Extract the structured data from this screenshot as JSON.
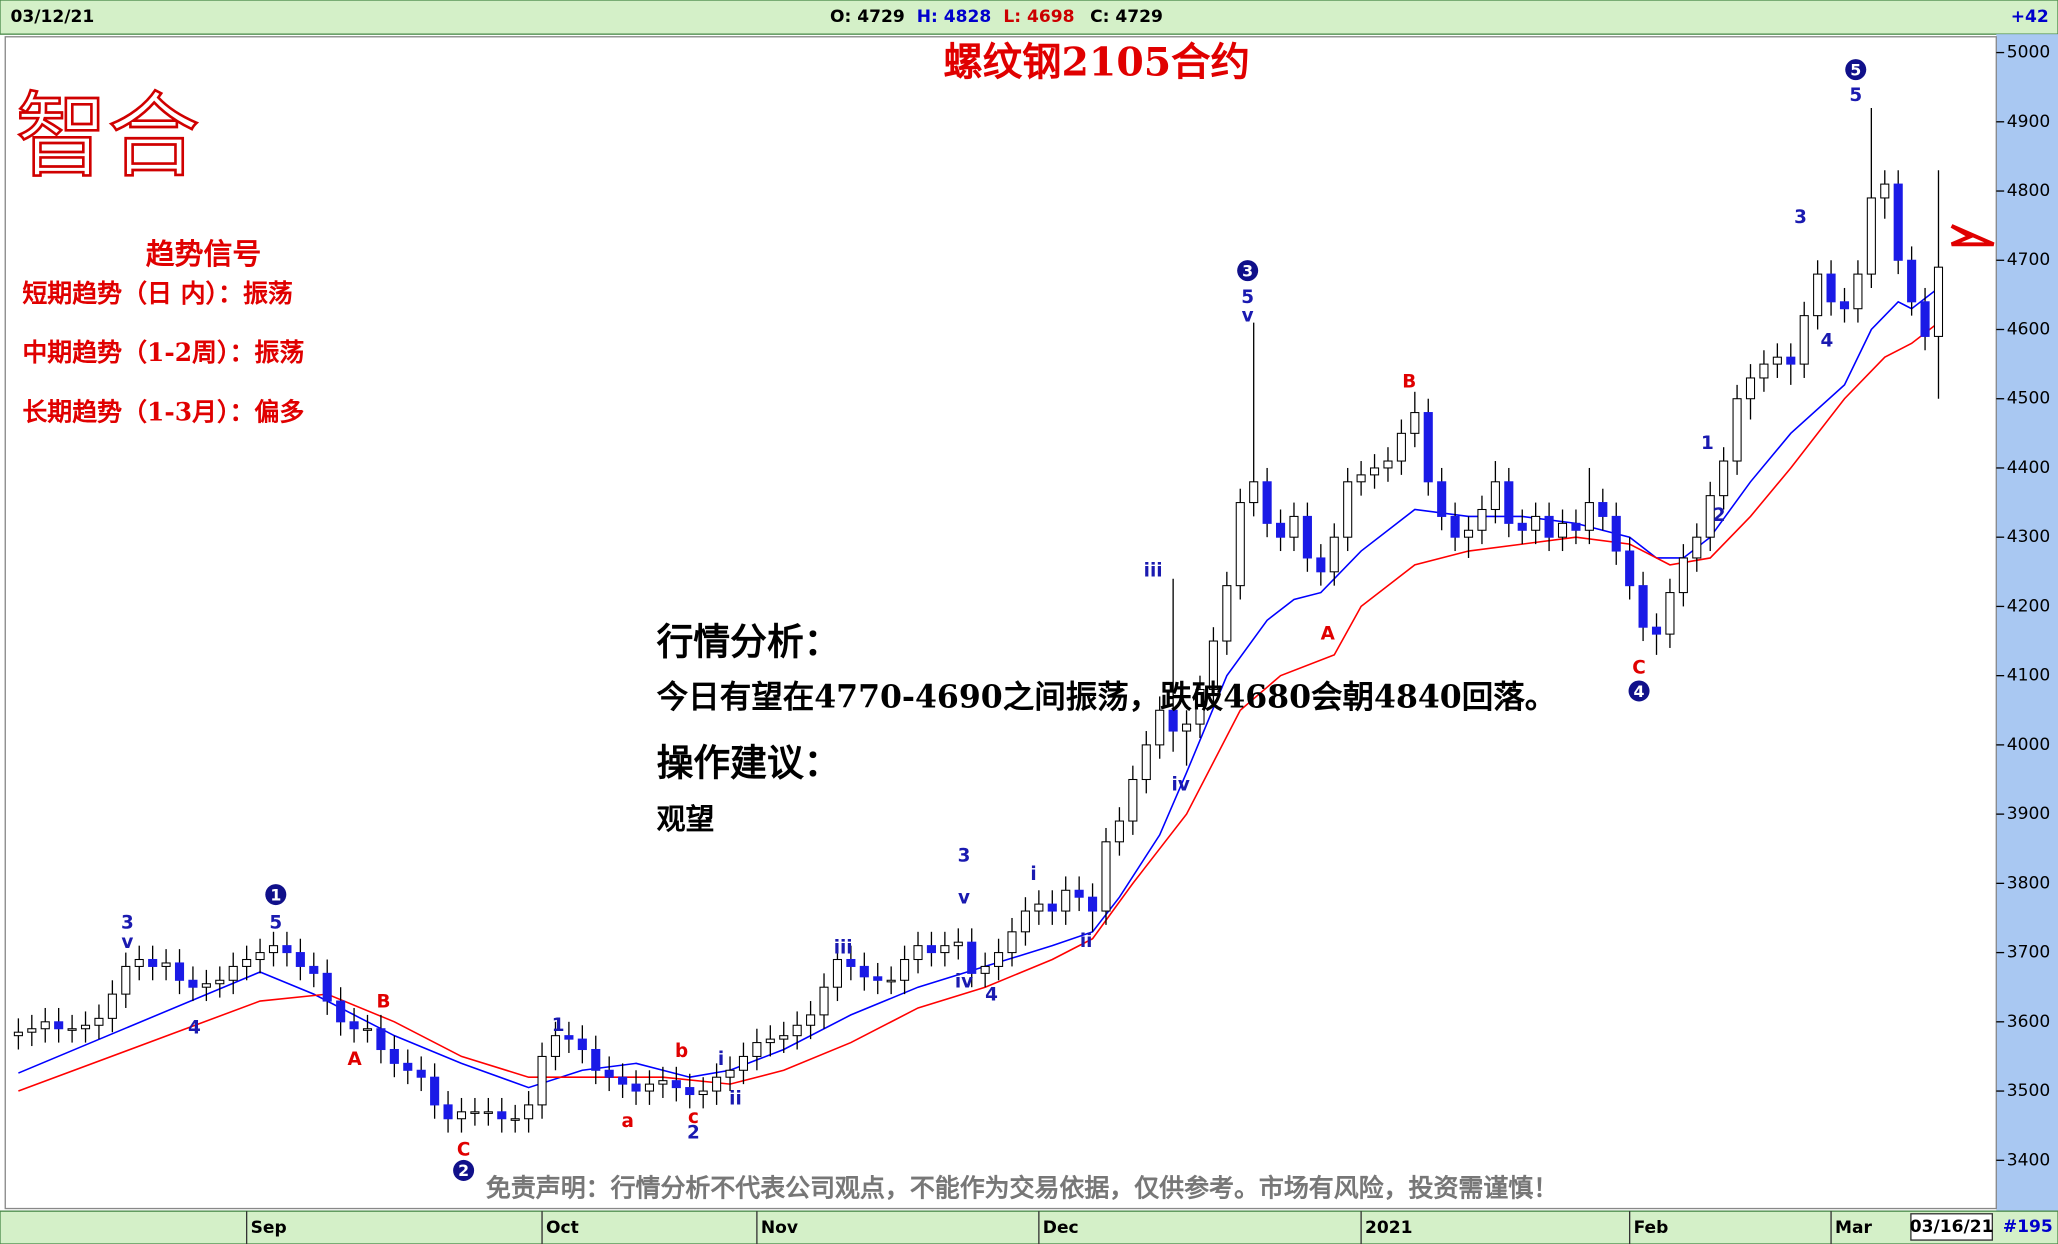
{
  "header": {
    "date": "03/12/21",
    "open": "O: 4729",
    "high": "H: 4828",
    "low": "L: 4698",
    "close": "C: 4729",
    "change": "+42"
  },
  "logo": "智合",
  "signals": {
    "title": "趋势信号",
    "lines": [
      "短期趋势（日 内）：振荡",
      "中期趋势（1-2周）：振荡",
      "长期趋势（1-3月）：偏多"
    ]
  },
  "analysis": {
    "title": "行情分析：",
    "text": "今日有望在4770-4690之间振荡，跌破4680会朝4840回落。",
    "advice_title": "操作建议：",
    "advice": "观望"
  },
  "disclaimer": "免责声明：行情分析不代表公司观点，不能作为交易依据，仅供参考。市场有风险，投资需谨慎！",
  "footer": {
    "date": "03/16/21",
    "count": "#195"
  },
  "chart_data": {
    "type": "candlestick",
    "title": "螺纹钢2105合约",
    "open": [
      3580,
      3585,
      3590,
      3600,
      3590,
      3590,
      3595,
      3605,
      3640,
      3680,
      3690,
      3680,
      3685,
      3660,
      3650,
      3655,
      3660,
      3680,
      3690,
      3700,
      3710,
      3700,
      3680,
      3670,
      3630,
      3600,
      3590,
      3590,
      3560,
      3540,
      3530,
      3520,
      3480,
      3460,
      3470,
      3470,
      3470,
      3460,
      3460,
      3480,
      3550,
      3580,
      3575,
      3560,
      3530,
      3520,
      3510,
      3500,
      3510,
      3515,
      3505,
      3495,
      3500,
      3520,
      3530,
      3550,
      3570,
      3575,
      3580,
      3595,
      3610,
      3650,
      3690,
      3680,
      3665,
      3660,
      3660,
      3690,
      3710,
      3700,
      3710,
      3715,
      3670,
      3680,
      3700,
      3730,
      3760,
      3770,
      3760,
      3790,
      3780,
      3760,
      3860,
      3890,
      3950,
      4000,
      4050,
      4020,
      4030,
      4080,
      4150,
      4230,
      4350,
      4380,
      4320,
      4300,
      4330,
      4270,
      4250,
      4300,
      4380,
      4390,
      4400,
      4410,
      4450,
      4480,
      4380,
      4330,
      4300,
      4310,
      4340,
      4380,
      4320,
      4310,
      4330,
      4300,
      4320,
      4310,
      4350,
      4330,
      4280,
      4230,
      4170,
      4160,
      4220,
      4270,
      4300,
      4360,
      4410,
      4500,
      4530,
      4550,
      4560,
      4550,
      4620,
      4680,
      4640,
      4630,
      4680,
      4790,
      4810,
      4700,
      4640,
      4590
    ],
    "high": [
      3605,
      3610,
      3620,
      3620,
      3610,
      3615,
      3625,
      3660,
      3700,
      3710,
      3710,
      3705,
      3705,
      3680,
      3675,
      3680,
      3700,
      3710,
      3720,
      3730,
      3730,
      3720,
      3700,
      3690,
      3650,
      3620,
      3610,
      3610,
      3580,
      3560,
      3550,
      3540,
      3500,
      3490,
      3490,
      3490,
      3490,
      3480,
      3500,
      3570,
      3600,
      3600,
      3595,
      3580,
      3550,
      3540,
      3530,
      3530,
      3535,
      3535,
      3525,
      3520,
      3540,
      3550,
      3570,
      3590,
      3595,
      3600,
      3615,
      3630,
      3670,
      3710,
      3710,
      3700,
      3685,
      3680,
      3710,
      3730,
      3730,
      3730,
      3735,
      3735,
      3700,
      3720,
      3750,
      3780,
      3790,
      3790,
      3810,
      3810,
      3800,
      3880,
      3910,
      3970,
      4020,
      4070,
      4240,
      4050,
      4100,
      4170,
      4250,
      4370,
      4610,
      4400,
      4340,
      4350,
      4350,
      4290,
      4320,
      4400,
      4410,
      4420,
      4430,
      4470,
      4510,
      4500,
      4400,
      4350,
      4330,
      4360,
      4410,
      4400,
      4340,
      4350,
      4350,
      4340,
      4340,
      4400,
      4370,
      4350,
      4300,
      4250,
      4190,
      4240,
      4290,
      4320,
      4380,
      4430,
      4520,
      4550,
      4570,
      4580,
      4580,
      4640,
      4700,
      4700,
      4660,
      4700,
      4920,
      4830,
      4830,
      4720,
      4660,
      4830
    ],
    "low": [
      3560,
      3565,
      3570,
      3570,
      3570,
      3570,
      3575,
      3585,
      3620,
      3660,
      3660,
      3660,
      3640,
      3630,
      3630,
      3635,
      3640,
      3660,
      3670,
      3680,
      3680,
      3660,
      3650,
      3610,
      3580,
      3570,
      3570,
      3540,
      3520,
      3510,
      3500,
      3460,
      3440,
      3440,
      3450,
      3450,
      3440,
      3440,
      3440,
      3460,
      3530,
      3555,
      3540,
      3510,
      3500,
      3490,
      3480,
      3480,
      3490,
      3485,
      3475,
      3475,
      3480,
      3500,
      3510,
      3530,
      3550,
      3555,
      3560,
      3575,
      3590,
      3630,
      3660,
      3645,
      3640,
      3640,
      3640,
      3670,
      3680,
      3680,
      3690,
      3650,
      3650,
      3660,
      3680,
      3710,
      3740,
      3740,
      3740,
      3760,
      3730,
      3740,
      3840,
      3870,
      3930,
      3980,
      3990,
      3970,
      4010,
      4060,
      4130,
      4210,
      4330,
      4300,
      4280,
      4280,
      4250,
      4230,
      4230,
      4280,
      4360,
      4370,
      4380,
      4390,
      4430,
      4360,
      4310,
      4280,
      4270,
      4290,
      4320,
      4300,
      4290,
      4290,
      4280,
      4280,
      4290,
      4290,
      4310,
      4260,
      4210,
      4150,
      4130,
      4140,
      4200,
      4250,
      4280,
      4340,
      4390,
      4470,
      4510,
      4530,
      4520,
      4530,
      4600,
      4620,
      4610,
      4610,
      4660,
      4760,
      4680,
      4620,
      4570,
      4500
    ],
    "close": [
      3585,
      3590,
      3600,
      3590,
      3590,
      3595,
      3605,
      3640,
      3680,
      3690,
      3680,
      3685,
      3660,
      3650,
      3655,
      3660,
      3680,
      3690,
      3700,
      3710,
      3700,
      3680,
      3670,
      3630,
      3600,
      3590,
      3590,
      3560,
      3540,
      3530,
      3520,
      3480,
      3460,
      3470,
      3470,
      3470,
      3460,
      3460,
      3480,
      3550,
      3580,
      3575,
      3560,
      3530,
      3520,
      3510,
      3500,
      3510,
      3515,
      3505,
      3495,
      3500,
      3520,
      3530,
      3550,
      3570,
      3575,
      3580,
      3595,
      3610,
      3650,
      3690,
      3680,
      3665,
      3660,
      3660,
      3690,
      3710,
      3700,
      3710,
      3715,
      3670,
      3680,
      3700,
      3730,
      3760,
      3770,
      3760,
      3790,
      3780,
      3760,
      3860,
      3890,
      3950,
      4000,
      4050,
      4020,
      4030,
      4080,
      4150,
      4230,
      4350,
      4380,
      4320,
      4300,
      4330,
      4270,
      4250,
      4300,
      4380,
      4390,
      4400,
      4410,
      4450,
      4480,
      4380,
      4330,
      4300,
      4310,
      4340,
      4380,
      4320,
      4310,
      4330,
      4300,
      4320,
      4310,
      4350,
      4330,
      4280,
      4230,
      4170,
      4160,
      4220,
      4270,
      4300,
      4360,
      4410,
      4500,
      4530,
      4550,
      4560,
      4550,
      4620,
      4680,
      4640,
      4630,
      4680,
      4790,
      4810,
      4700,
      4640,
      4590,
      4690
    ],
    "up_color": "#ffffff",
    "down_color": "#1a1ae6",
    "moving_averages": [
      {
        "color": "#0000ff",
        "x": [
          0,
          18,
          22,
          28,
          33,
          38,
          42,
          46,
          50,
          53,
          57,
          62,
          67,
          72,
          77,
          80,
          82,
          85,
          87,
          90,
          93,
          95,
          97,
          100,
          104,
          108,
          112,
          116,
          120,
          122,
          124,
          126,
          129,
          132,
          136,
          138,
          140,
          141,
          143
        ],
        "values": [
          3526,
          3672,
          3640,
          3580,
          3540,
          3505,
          3530,
          3540,
          3520,
          3530,
          3560,
          3610,
          3650,
          3680,
          3710,
          3730,
          3780,
          3870,
          3960,
          4100,
          4180,
          4210,
          4220,
          4280,
          4340,
          4330,
          4330,
          4320,
          4300,
          4270,
          4270,
          4300,
          4380,
          4450,
          4520,
          4600,
          4640,
          4630,
          4660
        ]
      },
      {
        "color": "#ff0000",
        "x": [
          0,
          18,
          23,
          28,
          33,
          38,
          43,
          48,
          53,
          57,
          62,
          67,
          72,
          77,
          80,
          83,
          87,
          91,
          94,
          98,
          100,
          104,
          108,
          112,
          116,
          120,
          123,
          126,
          129,
          132,
          136,
          139,
          141,
          143
        ],
        "values": [
          3500,
          3630,
          3640,
          3600,
          3550,
          3520,
          3520,
          3520,
          3510,
          3530,
          3570,
          3620,
          3650,
          3690,
          3720,
          3800,
          3900,
          4050,
          4100,
          4130,
          4200,
          4260,
          4280,
          4290,
          4300,
          4290,
          4260,
          4270,
          4330,
          4400,
          4500,
          4560,
          4580,
          4610
        ]
      }
    ],
    "ylim": [
      3336,
      5019
    ],
    "yticks": [
      3400,
      3500,
      3600,
      3700,
      3800,
      3900,
      4000,
      4100,
      4200,
      4300,
      4400,
      4500,
      4600,
      4700,
      4800,
      4900,
      5000
    ],
    "xticks": [
      {
        "value": 17,
        "label": "Sep"
      },
      {
        "value": 39,
        "label": "Oct"
      },
      {
        "value": 55,
        "label": "Nov"
      },
      {
        "value": 76,
        "label": "Dec"
      },
      {
        "value": 100,
        "label": "2021"
      },
      {
        "value": 120,
        "label": "Feb"
      },
      {
        "value": 135,
        "label": "Mar"
      }
    ],
    "wave_labels": [
      "3",
      "v",
      "4",
      "5",
      "1",
      "A",
      "B",
      "C",
      "2",
      "1",
      "a",
      "b",
      "c",
      "2",
      "i",
      "ii",
      "iii",
      "3",
      "v",
      "iv",
      "4",
      "i",
      "ii",
      "iii",
      "iv",
      "3",
      "5",
      "v",
      "B",
      "A",
      "C",
      "4",
      "1",
      "2",
      "3",
      "4",
      "5",
      "5"
    ]
  }
}
